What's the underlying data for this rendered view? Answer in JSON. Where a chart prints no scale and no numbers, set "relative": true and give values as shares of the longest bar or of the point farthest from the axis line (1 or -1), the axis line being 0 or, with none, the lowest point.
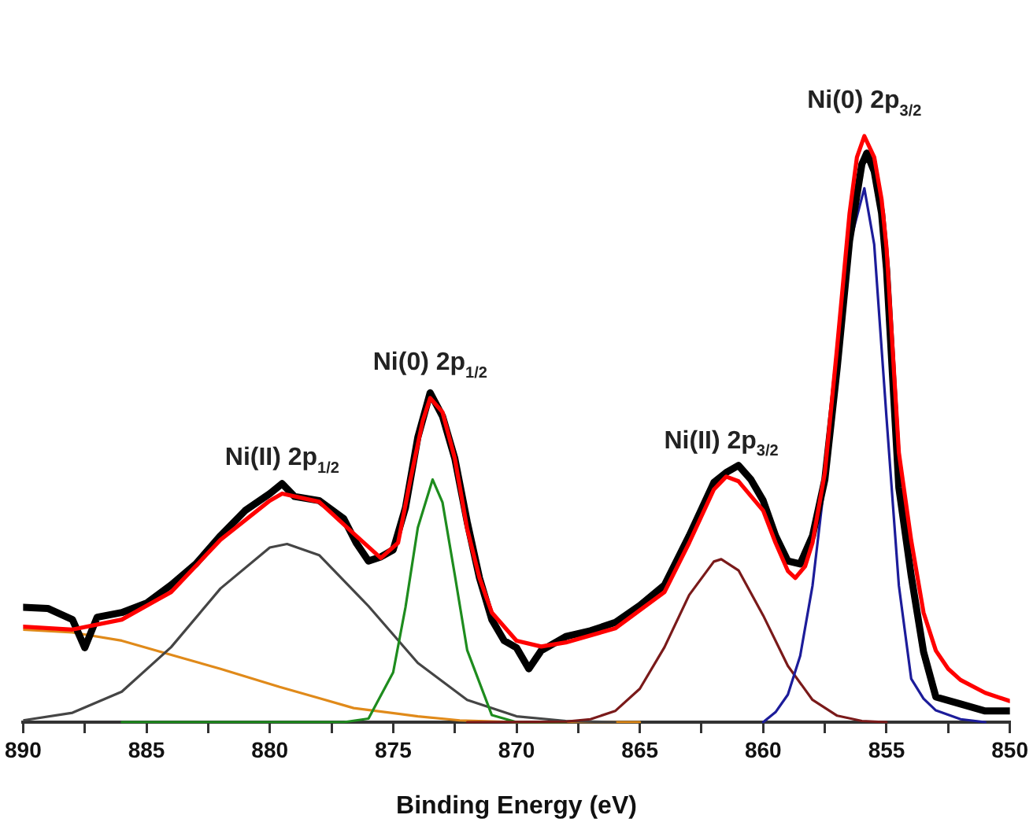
{
  "chart_data": {
    "type": "line",
    "xlabel": "Binding Energy (eV)",
    "relative": true,
    "marker": "none",
    "line_style": "solid",
    "xlim": [
      890,
      850
    ],
    "xticks": [
      890,
      {
        "value": 887.5,
        "label": null
      },
      885,
      {
        "value": 882.5,
        "label": null
      },
      880,
      {
        "value": 877.5,
        "label": null
      },
      875,
      {
        "value": 872.5,
        "label": null
      },
      870,
      {
        "value": 867.5,
        "label": null
      },
      865,
      {
        "value": 862.5,
        "label": null
      },
      860,
      {
        "value": 857.5,
        "label": null
      },
      855,
      {
        "value": 852.5,
        "label": null
      },
      850
    ],
    "series": [
      {
        "color": "#e08a1a",
        "x": [
          890,
          888,
          886,
          883.6,
          882,
          879.6,
          878,
          876.6,
          874,
          872.3,
          870,
          865
        ],
        "values": [
          0.158,
          0.153,
          0.139,
          0.11,
          0.091,
          0.06,
          0.041,
          0.024,
          0.01,
          0.003,
          0,
          0
        ]
      },
      {
        "color": "#454545",
        "x": [
          890,
          888,
          886,
          884,
          882,
          880,
          879.3,
          878,
          876,
          874,
          872,
          870,
          868,
          866
        ],
        "values": [
          0.003,
          0.016,
          0.052,
          0.128,
          0.228,
          0.298,
          0.304,
          0.285,
          0.198,
          0.101,
          0.038,
          0.01,
          0.002,
          0
        ]
      },
      {
        "color": "#1e8c1e",
        "x": [
          886,
          877,
          876,
          875,
          874.5,
          874,
          873.4,
          873,
          872.5,
          872,
          871,
          870,
          868
        ],
        "values": [
          0,
          0,
          0.006,
          0.085,
          0.196,
          0.332,
          0.414,
          0.375,
          0.251,
          0.123,
          0.012,
          0,
          0
        ]
      },
      {
        "color": "#7a1a1a",
        "x": [
          872,
          868,
          867,
          866,
          865,
          864,
          863,
          862,
          861.7,
          861,
          860,
          859,
          858,
          857,
          856,
          855
        ],
        "values": [
          0,
          0.001,
          0.005,
          0.019,
          0.057,
          0.128,
          0.217,
          0.274,
          0.278,
          0.259,
          0.182,
          0.096,
          0.038,
          0.011,
          0.002,
          0
        ]
      },
      {
        "color": "#1c1c9a",
        "x": [
          860,
          859.5,
          859,
          858.5,
          858,
          857.5,
          857,
          856.5,
          855.9,
          855.5,
          855,
          854.5,
          854,
          853.5,
          853,
          852,
          851
        ],
        "values": [
          0,
          0.017,
          0.047,
          0.113,
          0.233,
          0.413,
          0.627,
          0.815,
          0.911,
          0.815,
          0.519,
          0.233,
          0.074,
          0.04,
          0.02,
          0.005,
          0
        ]
      },
      {
        "color": "#000000",
        "x": [
          890,
          889,
          888,
          887.5,
          887,
          886,
          885,
          884,
          883,
          882,
          881,
          880,
          879.5,
          879,
          878,
          877,
          876.5,
          876,
          875.5,
          875,
          874.5,
          874,
          873.5,
          873,
          872.5,
          872,
          871.5,
          871,
          870.5,
          870,
          869.5,
          869,
          868,
          867,
          866,
          865,
          864,
          863,
          862,
          861.5,
          861,
          860.5,
          860,
          859.5,
          859,
          858.5,
          858,
          857.5,
          857,
          856.5,
          856,
          855.8,
          855.5,
          855.2,
          855,
          854.5,
          854,
          853.5,
          853,
          852,
          851,
          850
        ],
        "values": [
          0.196,
          0.194,
          0.175,
          0.127,
          0.179,
          0.187,
          0.203,
          0.234,
          0.27,
          0.318,
          0.361,
          0.39,
          0.407,
          0.385,
          0.378,
          0.347,
          0.306,
          0.275,
          0.282,
          0.294,
          0.366,
          0.486,
          0.562,
          0.522,
          0.45,
          0.342,
          0.246,
          0.175,
          0.139,
          0.127,
          0.091,
          0.122,
          0.146,
          0.156,
          0.17,
          0.199,
          0.234,
          0.318,
          0.409,
          0.426,
          0.438,
          0.414,
          0.378,
          0.318,
          0.275,
          0.27,
          0.318,
          0.414,
          0.605,
          0.821,
          0.952,
          0.971,
          0.94,
          0.868,
          0.773,
          0.4,
          0.25,
          0.12,
          0.043,
          0.031,
          0.019,
          0.019
        ]
      },
      {
        "color": "#ff0000",
        "x": [
          890,
          888,
          886,
          884,
          882,
          880,
          879.5,
          878,
          876.5,
          875.5,
          874.8,
          874.3,
          873.8,
          873.5,
          873,
          872.5,
          872,
          871.5,
          871,
          870,
          869,
          868,
          866,
          864,
          863,
          862,
          861.5,
          861,
          860,
          859.5,
          859,
          858.7,
          858.3,
          858,
          857.5,
          857,
          856.5,
          856.2,
          855.9,
          855.5,
          855.2,
          855,
          854.5,
          854,
          853.5,
          853,
          852.5,
          852,
          851,
          850
        ],
        "values": [
          0.163,
          0.158,
          0.175,
          0.222,
          0.311,
          0.378,
          0.39,
          0.376,
          0.318,
          0.28,
          0.306,
          0.414,
          0.514,
          0.553,
          0.529,
          0.45,
          0.33,
          0.246,
          0.187,
          0.139,
          0.129,
          0.136,
          0.16,
          0.222,
          0.306,
          0.397,
          0.419,
          0.411,
          0.361,
          0.306,
          0.258,
          0.246,
          0.266,
          0.306,
          0.426,
          0.641,
          0.868,
          0.964,
          1,
          0.964,
          0.892,
          0.809,
          0.46,
          0.31,
          0.187,
          0.122,
          0.091,
          0.072,
          0.05,
          0.036
        ]
      }
    ],
    "annotations": [
      {
        "text": "Ni(II) 2p$_{1/2}$",
        "x": 879.5,
        "y": 0.39
      },
      {
        "text": "Ni(0) 2p$_{1/2}$",
        "x": 873.5,
        "y": 0.553
      },
      {
        "text": "Ni(II) 2p$_{3/2}$",
        "x": 861.7,
        "y": 0.419
      },
      {
        "text": "Ni(0) 2p$_{3/2}$",
        "x": 855.9,
        "y": 1
      }
    ]
  }
}
